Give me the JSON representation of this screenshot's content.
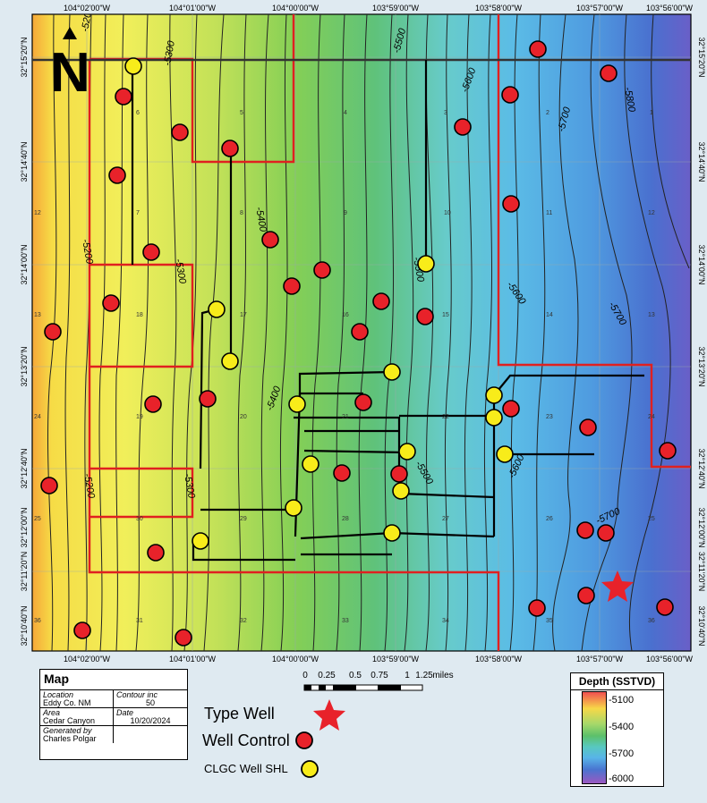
{
  "map": {
    "lon_labels": [
      "104°02'00\"W",
      "104°01'00\"W",
      "104°00'00\"W",
      "103°59'00\"W",
      "103°58'00\"W",
      "103°57'00\"W",
      "103°56'00\"W"
    ],
    "lat_labels": [
      "32°15'20\"N",
      "32°14'40\"N",
      "32°14'00\"N",
      "32°13'20\"N",
      "32°12'40\"N",
      "32°12'00\"N",
      "32°11'20\"N",
      "32°10'40\"N"
    ],
    "section_numbers": [
      "6",
      "5",
      "4",
      "3",
      "2",
      "1",
      "12",
      "7",
      "8",
      "9",
      "10",
      "11",
      "12",
      "13",
      "18",
      "17",
      "16",
      "15",
      "14",
      "13",
      "24",
      "19",
      "20",
      "21",
      "22",
      "23",
      "24",
      "25",
      "30",
      "29",
      "28",
      "27",
      "26",
      "25",
      "36",
      "31",
      "32",
      "33",
      "34",
      "35",
      "36"
    ],
    "contour_labels": [
      "-5200",
      "-5300",
      "-5500",
      "-5600",
      "-5700",
      "-5800",
      "-5200",
      "-5300",
      "-5400",
      "-5500",
      "-5600",
      "-5700",
      "-5400",
      "-5300",
      "-5200",
      "-5500",
      "-5600",
      "-5700"
    ],
    "north_label": "N"
  },
  "scale_bar": {
    "ticks": [
      "0",
      "0.25",
      "0.5",
      "0.75",
      "1",
      "1.25"
    ],
    "unit": "miles"
  },
  "title_block": {
    "heading": "Map",
    "location_label": "Location",
    "location_value": "Eddy Co. NM",
    "contour_label": "Contour inc",
    "contour_value": "50",
    "area_label": "Area",
    "area_value": "Cedar Canyon",
    "date_label": "Date",
    "date_value": "10/20/2024",
    "generated_label": "Generated by",
    "generated_value": "Charles Polgar"
  },
  "legend": {
    "type_well": "Type Well",
    "well_control": "Well Control",
    "clgc_shl": "CLGC Well SHL"
  },
  "depth_legend": {
    "title": "Depth (SSTVD)",
    "ticks": [
      "-5100",
      "-5400",
      "-5700",
      "-6000"
    ]
  },
  "colors": {
    "well_control": "#e8222a",
    "clgc_shl": "#f8ec1a",
    "lease_outline": "#e02020",
    "type_well": "#e8222a"
  }
}
